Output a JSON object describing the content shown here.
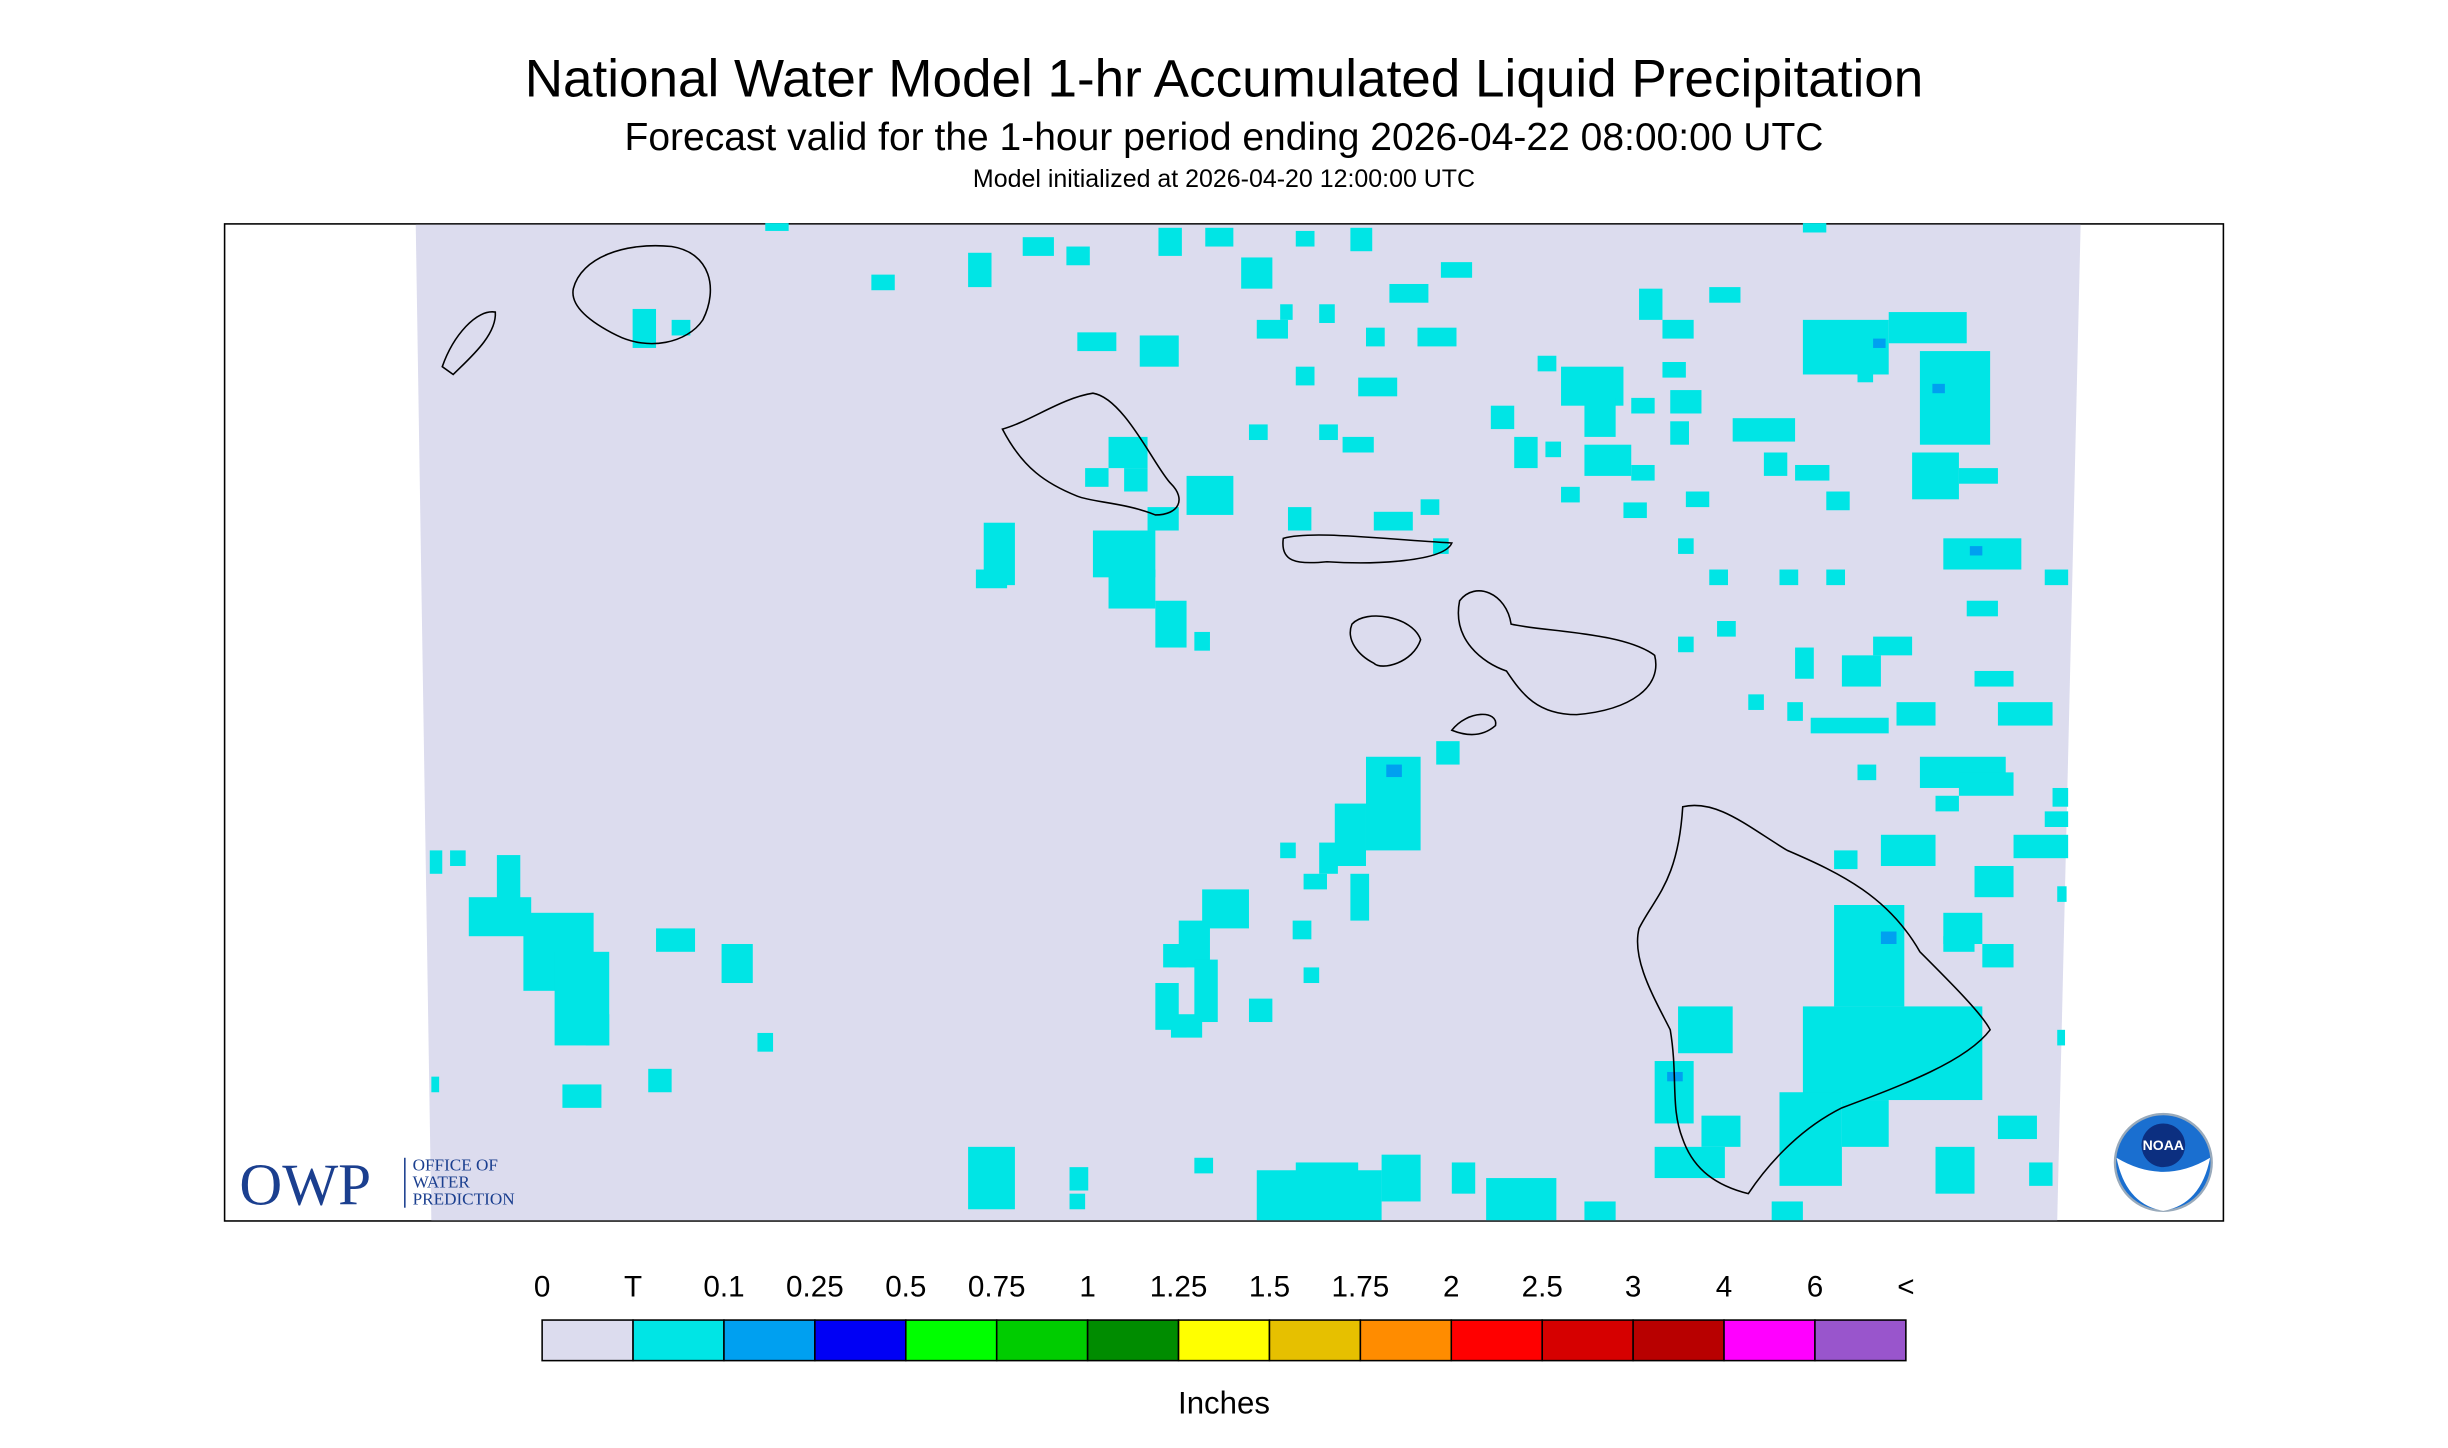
{
  "header": {
    "title": "National Water Model 1-hr Accumulated Liquid Precipitation",
    "subtitle": "Forecast valid for the 1-hour period ending 2026-04-22 08:00:00 UTC",
    "initialized": "Model initialized at 2026-04-20 12:00:00 UTC"
  },
  "logos": {
    "owp": "OWP",
    "owp_lines": [
      "OFFICE OF",
      "WATER",
      "PREDICTION"
    ],
    "noaa": "NOAA"
  },
  "legend": {
    "labels": [
      "0",
      "T",
      "0.1",
      "0.25",
      "0.5",
      "0.75",
      "1",
      "1.25",
      "1.5",
      "1.75",
      "2",
      "2.5",
      "3",
      "4",
      "6",
      "<"
    ],
    "colors": [
      "#dcdcee",
      "#00e5e5",
      "#00a0f0",
      "#0000f5",
      "#00ff00",
      "#00cc00",
      "#008c00",
      "#ffff00",
      "#e6c000",
      "#ff8c00",
      "#ff0000",
      "#d60000",
      "#b80000",
      "#ff00ff",
      "#9955cc"
    ],
    "units": "Inches"
  }
}
